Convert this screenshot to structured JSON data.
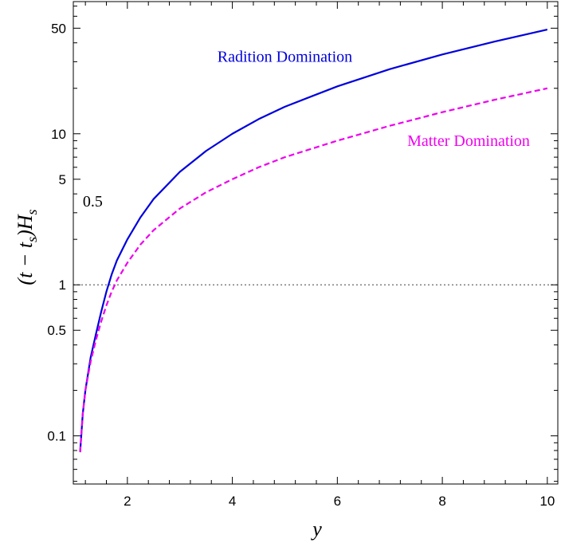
{
  "chart_data": {
    "type": "line",
    "xlabel": "y",
    "ylabel": "(t − t_s)H_s",
    "ylabel_parts": {
      "open": "(t − t",
      "sub1": "s",
      "close": ")H",
      "sub2": "s"
    },
    "x_scale": "linear",
    "y_scale": "log",
    "xlim": [
      0.97,
      10.2
    ],
    "ylim": [
      0.048,
      75
    ],
    "x_ticks": [
      2,
      4,
      6,
      8,
      10
    ],
    "y_ticks": [
      0.1,
      0.5,
      1,
      5,
      10,
      50
    ],
    "y_tick_labels": [
      "0.1",
      "0.5",
      "1",
      "5",
      "10",
      "50"
    ],
    "reference_line": {
      "y": 1,
      "style": "dotted",
      "color": "#555555"
    },
    "series": [
      {
        "name": "Radition Domination",
        "color": "#0000dd",
        "style": "solid",
        "points": [
          [
            1.1,
            0.078
          ],
          [
            1.15,
            0.14
          ],
          [
            1.2,
            0.2
          ],
          [
            1.3,
            0.33
          ],
          [
            1.4,
            0.47
          ],
          [
            1.5,
            0.66
          ],
          [
            1.6,
            0.9
          ],
          [
            1.7,
            1.17
          ],
          [
            1.8,
            1.45
          ],
          [
            2.0,
            2.0
          ],
          [
            2.25,
            2.8
          ],
          [
            2.5,
            3.7
          ],
          [
            3.0,
            5.6
          ],
          [
            3.5,
            7.7
          ],
          [
            4.0,
            10.0
          ],
          [
            4.5,
            12.5
          ],
          [
            5.0,
            15.1
          ],
          [
            6.0,
            20.6
          ],
          [
            7.0,
            26.8
          ],
          [
            8.0,
            33.5
          ],
          [
            9.0,
            40.8
          ],
          [
            10.0,
            49.0
          ]
        ]
      },
      {
        "name": "Matter Domination",
        "color": "#ee00ee",
        "style": "dashed",
        "points": [
          [
            1.1,
            0.078
          ],
          [
            1.15,
            0.14
          ],
          [
            1.2,
            0.2
          ],
          [
            1.3,
            0.31
          ],
          [
            1.4,
            0.43
          ],
          [
            1.5,
            0.57
          ],
          [
            1.6,
            0.73
          ],
          [
            1.7,
            0.9
          ],
          [
            1.8,
            1.07
          ],
          [
            2.0,
            1.4
          ],
          [
            2.25,
            1.85
          ],
          [
            2.5,
            2.3
          ],
          [
            3.0,
            3.2
          ],
          [
            3.5,
            4.1
          ],
          [
            4.0,
            5.0
          ],
          [
            4.5,
            6.0
          ],
          [
            5.0,
            7.0
          ],
          [
            6.0,
            9.0
          ],
          [
            7.0,
            11.3
          ],
          [
            8.0,
            13.9
          ],
          [
            9.0,
            16.8
          ],
          [
            10.0,
            20.0
          ]
        ]
      }
    ],
    "annotations": [
      {
        "text": "Radition Domination",
        "x": 5.0,
        "y": 30,
        "color": "#0000dd"
      },
      {
        "text": "Matter Domination",
        "x": 8.5,
        "y": 8.3,
        "color": "#ee00ee"
      },
      {
        "text": "0.5",
        "x": 1.15,
        "y": 3.3,
        "color": "#000000"
      }
    ]
  }
}
